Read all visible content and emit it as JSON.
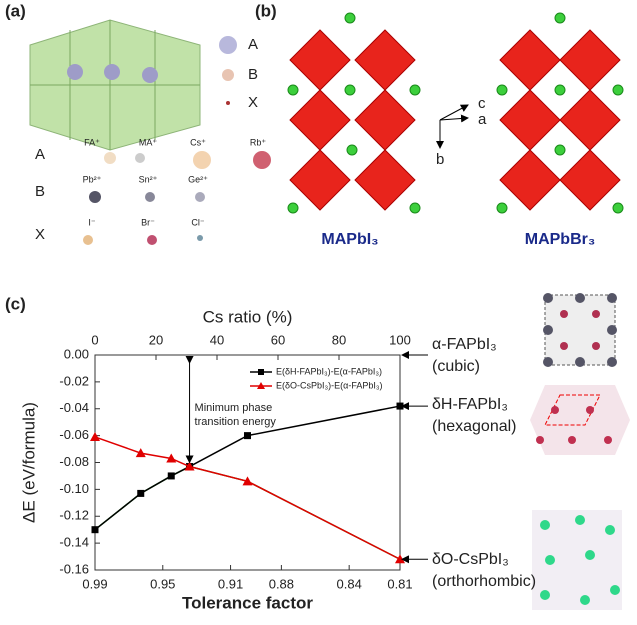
{
  "panel_a": {
    "label": "(a)",
    "legend": [
      "A",
      "B",
      "X"
    ],
    "rows": [
      {
        "site": "A",
        "ions": [
          "FA⁺",
          "MA⁺",
          "Cs⁺",
          "Rb⁺"
        ]
      },
      {
        "site": "B",
        "ions": [
          "Pb²⁺",
          "Sn²⁺",
          "Ge²⁺"
        ]
      },
      {
        "site": "X",
        "ions": [
          "I⁻",
          "Br⁻",
          "Cl⁻"
        ]
      }
    ]
  },
  "panel_b": {
    "label": "(b)",
    "structures": [
      "MAPbI₃",
      "MAPbBr₃"
    ],
    "axes": [
      "c",
      "a",
      "b"
    ]
  },
  "panel_c": {
    "label": "(c)",
    "phases": [
      {
        "name": "α-FAPbI₃",
        "structure": "(cubic)"
      },
      {
        "name": "δH-FAPbI₃",
        "structure": "(hexagonal)"
      },
      {
        "name": "δO-CsPbI₃",
        "structure": "(orthorhombic)"
      }
    ]
  },
  "chart_data": {
    "type": "line",
    "x_label_top": "Cs ratio (%)",
    "x_label": "Tolerance factor",
    "y_label": "ΔE (eV/formula)",
    "annotation": [
      "Minimum phase",
      "transition energy"
    ],
    "x": [
      0,
      15,
      25,
      31,
      50,
      100
    ],
    "xlim": [
      0,
      100
    ],
    "xticks": [
      0,
      20,
      40,
      60,
      80,
      100
    ],
    "x2lim": [
      0.99,
      0.81
    ],
    "x2ticks": [
      0.99,
      0.95,
      0.91,
      0.88,
      0.84,
      0.81
    ],
    "ylim": [
      -0.16,
      0
    ],
    "yticks": [
      -0.16,
      -0.14,
      -0.12,
      {
        "value": -0.1,
        "label": "-0.10"
      },
      -0.08,
      -0.06,
      -0.04,
      -0.02,
      {
        "value": 0,
        "label": "0.00"
      }
    ],
    "series": [
      {
        "name": "E(δH-FAPbI₃)-E(α-FAPbI₃)",
        "color": "#000000",
        "marker": "square",
        "values": [
          -0.13,
          -0.103,
          -0.09,
          -0.083,
          -0.06,
          -0.038
        ]
      },
      {
        "name": "E(δO-CsPbI₃)-E(α-FAPbI₃)",
        "color": "#e00000",
        "marker": "triangle",
        "values": [
          -0.061,
          -0.073,
          -0.077,
          -0.083,
          -0.094,
          -0.152
        ]
      },
      {
        "color": "#1a9a1a",
        "values": [
          -0.13,
          -0.103,
          -0.09,
          -0.083,
          -0.094,
          -0.152
        ]
      }
    ]
  }
}
